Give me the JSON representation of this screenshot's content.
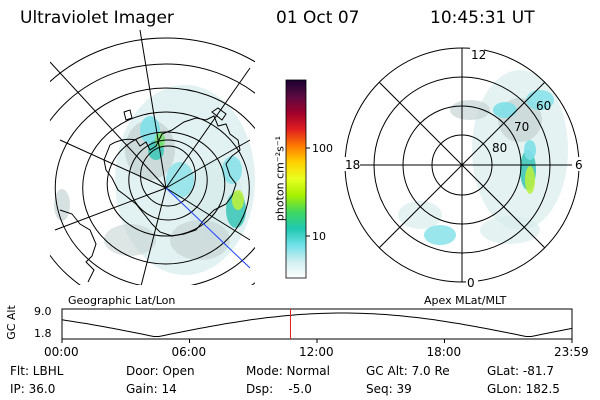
{
  "header": {
    "instrument": "Ultraviolet Imager",
    "date": "01 Oct 07",
    "time": "10:45:31 UT"
  },
  "colorbar": {
    "label": "photon cm⁻²s⁻¹",
    "ticks": [
      "100",
      "10"
    ],
    "colors": [
      "#1a0030",
      "#5a0a40",
      "#a0002a",
      "#e02020",
      "#ff7a00",
      "#ffd200",
      "#e8ff20",
      "#a6f000",
      "#40d860",
      "#20c8b0",
      "#70e0e8",
      "#cfeff0",
      "#ffffff"
    ]
  },
  "polar_plot": {
    "mlt_labels": {
      "top": "12",
      "left": "18",
      "right": "6",
      "bottom": "0"
    },
    "lat_labels": [
      "60",
      "70",
      "80"
    ]
  },
  "panel_labels": {
    "left": "Geographic Lat/Lon",
    "right": "Apex MLat/MLT"
  },
  "altitude_plot": {
    "ylabel": "GC Alt",
    "yticks": [
      "9.0",
      "1.8"
    ],
    "xticks": [
      "00:00",
      "06:00",
      "12:00",
      "18:00",
      "23:59"
    ],
    "current_time_fraction": 0.448
  },
  "info": {
    "filter": "Flt: LBHL",
    "ip": "IP: 36.0",
    "door": "Door: Open",
    "gain": "Gain: 14",
    "mode": "Mode: Normal",
    "dsp": "Dsp:    -5.0",
    "gc_alt": "GC Alt: 7.0 Re",
    "seq": "Seq: 39",
    "glat": "GLat: -81.7",
    "glon": "GLon: 182.5"
  },
  "colors": {
    "axis": "#000000",
    "current_time_marker": "#e02020",
    "sun_line": "#2040ff"
  }
}
